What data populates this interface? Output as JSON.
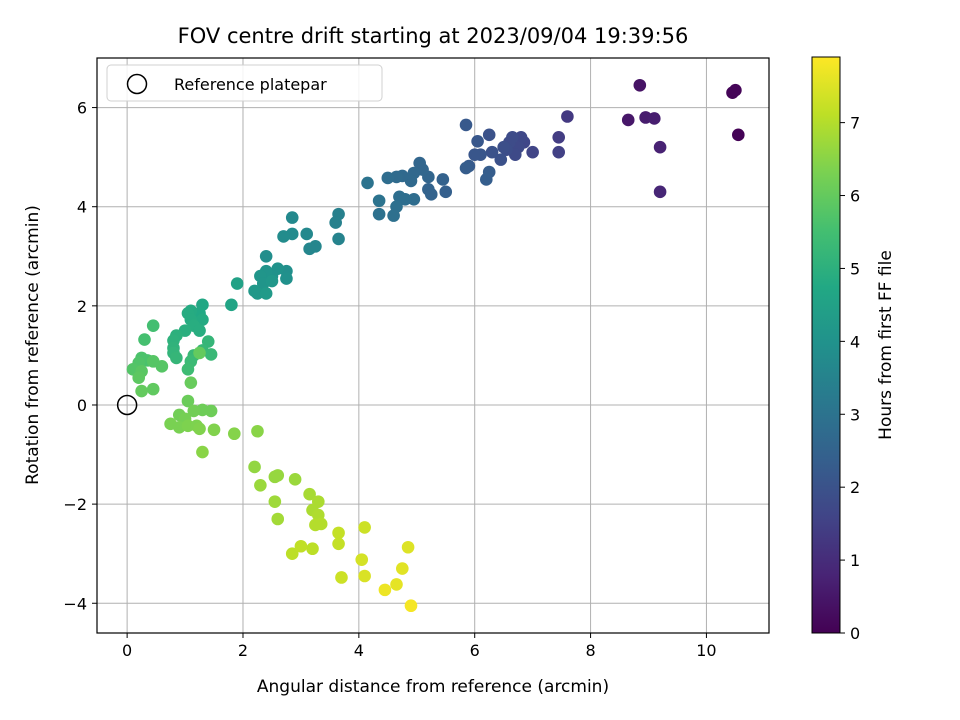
{
  "chart_data": {
    "type": "scatter",
    "title": "FOV centre drift starting at 2023/09/04 19:39:56",
    "xlabel": "Angular distance from reference (arcmin)",
    "ylabel": "Rotation from reference (arcmin)",
    "colorbar_label": "Hours from first FF file",
    "colormap": "viridis",
    "xlim": [
      -0.52,
      11.08
    ],
    "ylim": [
      -4.6,
      7.0
    ],
    "clim": [
      0,
      7.9
    ],
    "x_ticks": [
      "0",
      "2",
      "4",
      "6",
      "8",
      "10"
    ],
    "y_ticks": [
      "−4",
      "−2",
      "0",
      "2",
      "4",
      "6"
    ],
    "colorbar_ticks": [
      "0",
      "1",
      "2",
      "3",
      "4",
      "5",
      "6",
      "7"
    ],
    "grid": true,
    "legend": {
      "placement": "top-left",
      "entries": [
        "Reference platepar"
      ]
    },
    "reference_point": {
      "x": 0,
      "y": 0
    },
    "points": [
      {
        "x": 10.55,
        "y": 5.45,
        "h": 0.05
      },
      {
        "x": 10.45,
        "y": 6.3,
        "h": 0.08
      },
      {
        "x": 10.5,
        "y": 6.35,
        "h": 0.1
      },
      {
        "x": 8.85,
        "y": 6.45,
        "h": 0.4
      },
      {
        "x": 8.65,
        "y": 5.75,
        "h": 0.5
      },
      {
        "x": 8.95,
        "y": 5.8,
        "h": 0.6
      },
      {
        "x": 9.1,
        "y": 5.78,
        "h": 0.65
      },
      {
        "x": 9.2,
        "y": 5.2,
        "h": 0.75
      },
      {
        "x": 9.2,
        "y": 4.3,
        "h": 0.85
      },
      {
        "x": 7.6,
        "y": 5.82,
        "h": 1.3
      },
      {
        "x": 7.45,
        "y": 5.4,
        "h": 1.4
      },
      {
        "x": 7.45,
        "y": 5.1,
        "h": 1.5
      },
      {
        "x": 7.0,
        "y": 5.1,
        "h": 1.6
      },
      {
        "x": 6.85,
        "y": 5.3,
        "h": 1.65
      },
      {
        "x": 6.8,
        "y": 5.4,
        "h": 1.7
      },
      {
        "x": 6.75,
        "y": 5.2,
        "h": 1.72
      },
      {
        "x": 6.7,
        "y": 5.05,
        "h": 1.75
      },
      {
        "x": 6.6,
        "y": 5.3,
        "h": 1.8
      },
      {
        "x": 6.65,
        "y": 5.4,
        "h": 1.8
      },
      {
        "x": 6.55,
        "y": 5.15,
        "h": 1.85
      },
      {
        "x": 6.5,
        "y": 5.2,
        "h": 1.9
      },
      {
        "x": 6.45,
        "y": 4.95,
        "h": 1.95
      },
      {
        "x": 6.3,
        "y": 5.1,
        "h": 2.0
      },
      {
        "x": 6.25,
        "y": 5.45,
        "h": 2.0
      },
      {
        "x": 6.1,
        "y": 5.05,
        "h": 2.1
      },
      {
        "x": 6.0,
        "y": 5.05,
        "h": 2.1
      },
      {
        "x": 6.05,
        "y": 5.32,
        "h": 2.15
      },
      {
        "x": 5.85,
        "y": 5.65,
        "h": 2.2
      },
      {
        "x": 5.9,
        "y": 4.82,
        "h": 2.25
      },
      {
        "x": 5.85,
        "y": 4.78,
        "h": 2.3
      },
      {
        "x": 6.25,
        "y": 4.7,
        "h": 2.3
      },
      {
        "x": 6.2,
        "y": 4.55,
        "h": 2.35
      },
      {
        "x": 5.5,
        "y": 4.3,
        "h": 2.4
      },
      {
        "x": 5.45,
        "y": 4.55,
        "h": 2.45
      },
      {
        "x": 5.2,
        "y": 4.35,
        "h": 2.5
      },
      {
        "x": 5.25,
        "y": 4.25,
        "h": 2.5
      },
      {
        "x": 5.2,
        "y": 4.6,
        "h": 2.55
      },
      {
        "x": 5.1,
        "y": 4.75,
        "h": 2.6
      },
      {
        "x": 5.05,
        "y": 4.88,
        "h": 2.6
      },
      {
        "x": 4.95,
        "y": 4.68,
        "h": 2.65
      },
      {
        "x": 4.9,
        "y": 4.52,
        "h": 2.7
      },
      {
        "x": 4.75,
        "y": 4.62,
        "h": 2.7
      },
      {
        "x": 4.65,
        "y": 4.6,
        "h": 2.75
      },
      {
        "x": 4.5,
        "y": 4.58,
        "h": 2.8
      },
      {
        "x": 4.95,
        "y": 4.15,
        "h": 2.8
      },
      {
        "x": 4.8,
        "y": 4.15,
        "h": 2.85
      },
      {
        "x": 4.7,
        "y": 4.2,
        "h": 2.85
      },
      {
        "x": 4.65,
        "y": 4.0,
        "h": 2.9
      },
      {
        "x": 4.6,
        "y": 3.82,
        "h": 2.9
      },
      {
        "x": 4.35,
        "y": 3.85,
        "h": 2.95
      },
      {
        "x": 4.35,
        "y": 4.12,
        "h": 3.0
      },
      {
        "x": 4.15,
        "y": 4.48,
        "h": 3.0
      },
      {
        "x": 3.65,
        "y": 3.85,
        "h": 3.4
      },
      {
        "x": 3.6,
        "y": 3.68,
        "h": 3.45
      },
      {
        "x": 3.65,
        "y": 3.35,
        "h": 3.5
      },
      {
        "x": 3.25,
        "y": 3.2,
        "h": 3.6
      },
      {
        "x": 3.15,
        "y": 3.15,
        "h": 3.6
      },
      {
        "x": 3.1,
        "y": 3.45,
        "h": 3.65
      },
      {
        "x": 2.85,
        "y": 3.78,
        "h": 3.7
      },
      {
        "x": 2.85,
        "y": 3.45,
        "h": 3.75
      },
      {
        "x": 2.7,
        "y": 3.4,
        "h": 3.8
      },
      {
        "x": 2.4,
        "y": 3.0,
        "h": 3.85
      },
      {
        "x": 2.75,
        "y": 2.7,
        "h": 3.9
      },
      {
        "x": 2.75,
        "y": 2.55,
        "h": 3.95
      },
      {
        "x": 2.6,
        "y": 2.75,
        "h": 4.0
      },
      {
        "x": 2.5,
        "y": 2.6,
        "h": 4.0
      },
      {
        "x": 2.4,
        "y": 2.7,
        "h": 4.05
      },
      {
        "x": 2.3,
        "y": 2.6,
        "h": 4.1
      },
      {
        "x": 2.35,
        "y": 2.45,
        "h": 4.1
      },
      {
        "x": 2.5,
        "y": 2.5,
        "h": 4.15
      },
      {
        "x": 2.2,
        "y": 2.3,
        "h": 4.2
      },
      {
        "x": 2.25,
        "y": 2.25,
        "h": 4.2
      },
      {
        "x": 2.4,
        "y": 2.25,
        "h": 4.25
      },
      {
        "x": 1.9,
        "y": 2.45,
        "h": 4.5
      },
      {
        "x": 1.8,
        "y": 2.02,
        "h": 4.6
      },
      {
        "x": 1.3,
        "y": 2.02,
        "h": 4.7
      },
      {
        "x": 1.25,
        "y": 1.85,
        "h": 4.75
      },
      {
        "x": 1.3,
        "y": 1.72,
        "h": 4.8
      },
      {
        "x": 1.1,
        "y": 1.9,
        "h": 4.8
      },
      {
        "x": 1.05,
        "y": 1.85,
        "h": 4.85
      },
      {
        "x": 1.1,
        "y": 1.72,
        "h": 4.85
      },
      {
        "x": 1.15,
        "y": 1.6,
        "h": 4.9
      },
      {
        "x": 1.25,
        "y": 1.5,
        "h": 4.9
      },
      {
        "x": 1.0,
        "y": 1.5,
        "h": 4.95
      },
      {
        "x": 0.85,
        "y": 1.4,
        "h": 5.0
      },
      {
        "x": 0.8,
        "y": 1.3,
        "h": 5.05
      },
      {
        "x": 0.8,
        "y": 1.15,
        "h": 5.1
      },
      {
        "x": 0.8,
        "y": 1.05,
        "h": 5.15
      },
      {
        "x": 0.85,
        "y": 0.95,
        "h": 5.2
      },
      {
        "x": 1.4,
        "y": 1.28,
        "h": 5.2
      },
      {
        "x": 1.3,
        "y": 1.1,
        "h": 5.25
      },
      {
        "x": 1.45,
        "y": 1.02,
        "h": 5.3
      },
      {
        "x": 1.15,
        "y": 1.0,
        "h": 5.3
      },
      {
        "x": 1.1,
        "y": 0.88,
        "h": 5.35
      },
      {
        "x": 1.05,
        "y": 0.72,
        "h": 5.4
      },
      {
        "x": 0.45,
        "y": 1.6,
        "h": 5.5
      },
      {
        "x": 0.3,
        "y": 1.32,
        "h": 5.55
      },
      {
        "x": 0.35,
        "y": 0.9,
        "h": 5.6
      },
      {
        "x": 0.25,
        "y": 0.95,
        "h": 5.65
      },
      {
        "x": 0.2,
        "y": 0.85,
        "h": 5.7
      },
      {
        "x": 0.1,
        "y": 0.72,
        "h": 5.75
      },
      {
        "x": 0.6,
        "y": 0.78,
        "h": 5.8
      },
      {
        "x": 0.45,
        "y": 0.88,
        "h": 5.8
      },
      {
        "x": 0.25,
        "y": 0.68,
        "h": 5.85
      },
      {
        "x": 0.2,
        "y": 0.55,
        "h": 5.9
      },
      {
        "x": 0.45,
        "y": 0.32,
        "h": 5.95
      },
      {
        "x": 0.25,
        "y": 0.28,
        "h": 6.0
      },
      {
        "x": 1.25,
        "y": 1.05,
        "h": 6.0
      },
      {
        "x": 1.1,
        "y": 0.45,
        "h": 6.05
      },
      {
        "x": 1.05,
        "y": 0.08,
        "h": 6.1
      },
      {
        "x": 1.3,
        "y": -0.1,
        "h": 6.15
      },
      {
        "x": 1.45,
        "y": -0.12,
        "h": 6.15
      },
      {
        "x": 1.15,
        "y": -0.12,
        "h": 6.2
      },
      {
        "x": 0.9,
        "y": -0.2,
        "h": 6.2
      },
      {
        "x": 1.0,
        "y": -0.28,
        "h": 6.25
      },
      {
        "x": 0.75,
        "y": -0.38,
        "h": 6.3
      },
      {
        "x": 0.9,
        "y": -0.45,
        "h": 6.3
      },
      {
        "x": 1.05,
        "y": -0.42,
        "h": 6.35
      },
      {
        "x": 1.2,
        "y": -0.42,
        "h": 6.35
      },
      {
        "x": 1.25,
        "y": -0.48,
        "h": 6.4
      },
      {
        "x": 1.5,
        "y": -0.5,
        "h": 6.4
      },
      {
        "x": 1.85,
        "y": -0.58,
        "h": 6.45
      },
      {
        "x": 2.25,
        "y": -0.53,
        "h": 6.5
      },
      {
        "x": 1.3,
        "y": -0.95,
        "h": 6.5
      },
      {
        "x": 2.2,
        "y": -1.25,
        "h": 6.6
      },
      {
        "x": 2.55,
        "y": -1.45,
        "h": 6.65
      },
      {
        "x": 2.6,
        "y": -1.42,
        "h": 6.65
      },
      {
        "x": 2.3,
        "y": -1.62,
        "h": 6.7
      },
      {
        "x": 2.9,
        "y": -1.5,
        "h": 6.7
      },
      {
        "x": 2.55,
        "y": -1.95,
        "h": 6.75
      },
      {
        "x": 2.6,
        "y": -2.3,
        "h": 6.8
      },
      {
        "x": 3.15,
        "y": -1.8,
        "h": 6.85
      },
      {
        "x": 3.3,
        "y": -1.95,
        "h": 6.9
      },
      {
        "x": 3.2,
        "y": -2.12,
        "h": 6.9
      },
      {
        "x": 3.3,
        "y": -2.22,
        "h": 6.95
      },
      {
        "x": 3.25,
        "y": -2.42,
        "h": 7.0
      },
      {
        "x": 3.35,
        "y": -2.4,
        "h": 7.0
      },
      {
        "x": 3.2,
        "y": -2.9,
        "h": 7.1
      },
      {
        "x": 2.85,
        "y": -3.0,
        "h": 7.1
      },
      {
        "x": 3.0,
        "y": -2.85,
        "h": 7.15
      },
      {
        "x": 3.65,
        "y": -2.58,
        "h": 7.2
      },
      {
        "x": 3.65,
        "y": -2.8,
        "h": 7.2
      },
      {
        "x": 3.7,
        "y": -3.48,
        "h": 7.3
      },
      {
        "x": 4.1,
        "y": -2.47,
        "h": 7.3
      },
      {
        "x": 4.05,
        "y": -3.12,
        "h": 7.4
      },
      {
        "x": 4.1,
        "y": -3.45,
        "h": 7.45
      },
      {
        "x": 4.85,
        "y": -2.87,
        "h": 7.5
      },
      {
        "x": 4.75,
        "y": -3.3,
        "h": 7.55
      },
      {
        "x": 4.65,
        "y": -3.62,
        "h": 7.6
      },
      {
        "x": 4.45,
        "y": -3.73,
        "h": 7.7
      },
      {
        "x": 4.9,
        "y": -4.05,
        "h": 7.8
      }
    ]
  }
}
